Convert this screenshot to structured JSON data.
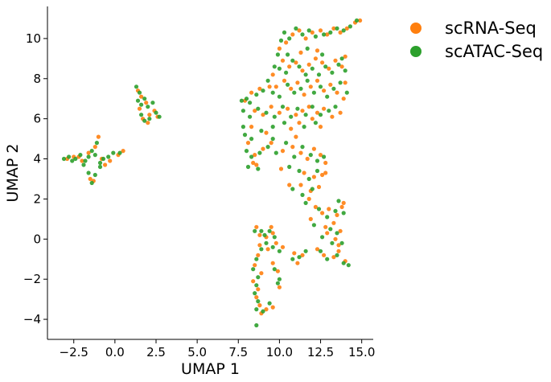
{
  "chart_data": {
    "type": "scatter",
    "title": "",
    "xlabel": "UMAP 1",
    "ylabel": "UMAP 2",
    "xlim": [
      -4.1,
      15.7
    ],
    "ylim": [
      -5.0,
      11.6
    ],
    "x_ticks": [
      -2.5,
      0.0,
      2.5,
      5.0,
      7.5,
      10.0,
      12.5,
      15.0
    ],
    "x_tick_labels": [
      "−2.5",
      "0.0",
      "2.5",
      "5.0",
      "7.5",
      "10.0",
      "12.5",
      "15.0"
    ],
    "y_ticks": [
      -4,
      -2,
      0,
      2,
      4,
      6,
      8,
      10
    ],
    "y_tick_labels": [
      "−4",
      "−2",
      "0",
      "2",
      "4",
      "6",
      "8",
      "10"
    ],
    "grid": false,
    "legend_position": "outside-top-right",
    "series": [
      {
        "name": "scRNA-Seq",
        "color": "#ff7f0e",
        "points": [
          [
            -2.9,
            4.0
          ],
          [
            -2.5,
            4.1
          ],
          [
            -2.0,
            3.9
          ],
          [
            -1.6,
            4.3
          ],
          [
            -1.2,
            4.6
          ],
          [
            -1.0,
            5.1
          ],
          [
            -0.8,
            4.0
          ],
          [
            -0.6,
            3.7
          ],
          [
            -0.3,
            3.9
          ],
          [
            0.2,
            4.2
          ],
          [
            0.5,
            4.4
          ],
          [
            -1.5,
            3.0
          ],
          [
            -1.3,
            2.9
          ],
          [
            -2.2,
            4.1
          ],
          [
            1.4,
            7.4
          ],
          [
            1.6,
            7.1
          ],
          [
            1.9,
            6.8
          ],
          [
            2.1,
            6.2
          ],
          [
            2.4,
            6.4
          ],
          [
            2.6,
            6.1
          ],
          [
            1.7,
            6.0
          ],
          [
            2.0,
            5.8
          ],
          [
            1.5,
            6.5
          ],
          [
            7.9,
            6.9
          ],
          [
            8.3,
            7.3
          ],
          [
            8.8,
            7.5
          ],
          [
            9.4,
            7.6
          ],
          [
            9.6,
            8.2
          ],
          [
            10.0,
            9.5
          ],
          [
            10.4,
            9.8
          ],
          [
            10.8,
            10.2
          ],
          [
            11.2,
            10.4
          ],
          [
            11.6,
            10.0
          ],
          [
            12.0,
            10.3
          ],
          [
            12.5,
            10.4
          ],
          [
            12.9,
            10.2
          ],
          [
            13.3,
            10.5
          ],
          [
            13.7,
            10.3
          ],
          [
            14.1,
            10.5
          ],
          [
            14.6,
            10.8
          ],
          [
            14.9,
            10.9
          ],
          [
            10.2,
            8.9
          ],
          [
            10.6,
            8.6
          ],
          [
            11.0,
            8.8
          ],
          [
            11.4,
            8.4
          ],
          [
            11.8,
            8.7
          ],
          [
            12.2,
            9.0
          ],
          [
            12.6,
            8.8
          ],
          [
            13.0,
            8.5
          ],
          [
            13.4,
            8.9
          ],
          [
            13.8,
            8.6
          ],
          [
            14.0,
            9.1
          ],
          [
            12.3,
            9.4
          ],
          [
            11.3,
            9.3
          ],
          [
            9.8,
            7.6
          ],
          [
            10.3,
            7.9
          ],
          [
            10.7,
            7.5
          ],
          [
            11.1,
            7.8
          ],
          [
            11.5,
            7.2
          ],
          [
            11.9,
            7.6
          ],
          [
            12.3,
            7.9
          ],
          [
            12.7,
            7.4
          ],
          [
            13.1,
            7.7
          ],
          [
            13.5,
            7.3
          ],
          [
            13.9,
            7.0
          ],
          [
            14.0,
            7.8
          ],
          [
            8.5,
            6.4
          ],
          [
            9.0,
            6.2
          ],
          [
            9.5,
            6.6
          ],
          [
            10.0,
            6.3
          ],
          [
            10.5,
            6.5
          ],
          [
            11.0,
            6.2
          ],
          [
            11.4,
            6.4
          ],
          [
            11.8,
            6.6
          ],
          [
            12.3,
            6.3
          ],
          [
            12.7,
            6.5
          ],
          [
            13.2,
            6.1
          ],
          [
            13.7,
            6.3
          ],
          [
            12.0,
            6.0
          ],
          [
            11.2,
            5.8
          ],
          [
            12.5,
            5.6
          ],
          [
            10.7,
            5.5
          ],
          [
            9.2,
            5.3
          ],
          [
            8.3,
            5.6
          ],
          [
            8.1,
            4.8
          ],
          [
            8.5,
            4.2
          ],
          [
            9.0,
            4.5
          ],
          [
            9.5,
            4.8
          ],
          [
            10.2,
            4.4
          ],
          [
            10.8,
            4.6
          ],
          [
            11.3,
            4.3
          ],
          [
            11.7,
            4.0
          ],
          [
            12.1,
            4.5
          ],
          [
            12.5,
            4.2
          ],
          [
            12.8,
            3.8
          ],
          [
            11.0,
            5.1
          ],
          [
            8.4,
            3.8
          ],
          [
            8.6,
            3.7
          ],
          [
            10.1,
            3.5
          ],
          [
            11.5,
            3.3
          ],
          [
            12.1,
            3.1
          ],
          [
            12.6,
            3.2
          ],
          [
            12.8,
            3.3
          ],
          [
            11.3,
            2.7
          ],
          [
            11.9,
            2.4
          ],
          [
            12.4,
            2.6
          ],
          [
            10.6,
            2.7
          ],
          [
            11.8,
            2.0
          ],
          [
            12.2,
            1.6
          ],
          [
            12.6,
            1.3
          ],
          [
            13.0,
            1.5
          ],
          [
            13.5,
            1.2
          ],
          [
            13.8,
            1.6
          ],
          [
            13.9,
            1.8
          ],
          [
            13.3,
            0.8
          ],
          [
            13.7,
            0.4
          ],
          [
            11.9,
            1.0
          ],
          [
            12.8,
            0.6
          ],
          [
            12.9,
            0.3
          ],
          [
            13.4,
            0.0
          ],
          [
            13.6,
            -0.3
          ],
          [
            12.3,
            -0.5
          ],
          [
            12.7,
            -0.8
          ],
          [
            13.3,
            -0.9
          ],
          [
            13.6,
            -0.6
          ],
          [
            14.0,
            -1.1
          ],
          [
            11.4,
            -0.8
          ],
          [
            11.1,
            -1.2
          ],
          [
            10.9,
            -0.7
          ],
          [
            8.6,
            0.6
          ],
          [
            8.8,
            0.2
          ],
          [
            9.2,
            0.1
          ],
          [
            9.5,
            0.6
          ],
          [
            9.6,
            0.3
          ],
          [
            8.8,
            -0.3
          ],
          [
            9.3,
            -0.5
          ],
          [
            9.8,
            -0.2
          ],
          [
            10.2,
            -0.4
          ],
          [
            8.7,
            -0.8
          ],
          [
            8.5,
            -1.3
          ],
          [
            8.9,
            -1.7
          ],
          [
            8.4,
            -2.1
          ],
          [
            8.7,
            -2.5
          ],
          [
            8.6,
            -2.9
          ],
          [
            8.8,
            -3.3
          ],
          [
            8.9,
            -3.7
          ],
          [
            9.2,
            -3.5
          ],
          [
            9.6,
            -3.4
          ],
          [
            10.0,
            -2.4
          ],
          [
            9.9,
            -1.6
          ],
          [
            9.6,
            -1.2
          ]
        ]
      },
      {
        "name": "scATAC-Seq",
        "color": "#2ca02c",
        "points": [
          [
            -3.1,
            4.0
          ],
          [
            -2.8,
            4.1
          ],
          [
            -2.4,
            4.0
          ],
          [
            -2.1,
            4.2
          ],
          [
            -1.8,
            3.9
          ],
          [
            -1.6,
            4.1
          ],
          [
            -1.4,
            4.4
          ],
          [
            -1.2,
            4.2
          ],
          [
            -1.1,
            4.8
          ],
          [
            -0.9,
            3.8
          ],
          [
            -0.7,
            4.0
          ],
          [
            -0.4,
            4.1
          ],
          [
            -0.1,
            4.3
          ],
          [
            0.3,
            4.3
          ],
          [
            -1.6,
            3.3
          ],
          [
            -1.4,
            2.8
          ],
          [
            -1.2,
            3.2
          ],
          [
            -0.9,
            3.6
          ],
          [
            -2.6,
            3.9
          ],
          [
            -1.9,
            3.7
          ],
          [
            1.3,
            7.6
          ],
          [
            1.5,
            7.3
          ],
          [
            1.8,
            7.0
          ],
          [
            2.0,
            6.6
          ],
          [
            2.3,
            6.8
          ],
          [
            2.5,
            6.3
          ],
          [
            2.7,
            6.1
          ],
          [
            1.6,
            6.2
          ],
          [
            1.8,
            5.9
          ],
          [
            2.1,
            6.0
          ],
          [
            1.4,
            6.9
          ],
          [
            1.6,
            6.7
          ],
          [
            7.7,
            6.9
          ],
          [
            8.0,
            7.0
          ],
          [
            8.2,
            6.8
          ],
          [
            8.6,
            7.2
          ],
          [
            9.0,
            7.4
          ],
          [
            9.3,
            7.9
          ],
          [
            9.7,
            8.6
          ],
          [
            9.9,
            9.2
          ],
          [
            10.1,
            9.9
          ],
          [
            10.3,
            10.3
          ],
          [
            10.6,
            10.0
          ],
          [
            11.0,
            10.5
          ],
          [
            11.4,
            10.2
          ],
          [
            11.8,
            10.4
          ],
          [
            12.2,
            10.1
          ],
          [
            12.7,
            10.2
          ],
          [
            13.1,
            10.3
          ],
          [
            13.5,
            10.5
          ],
          [
            13.9,
            10.4
          ],
          [
            14.3,
            10.6
          ],
          [
            14.7,
            10.9
          ],
          [
            10.0,
            8.5
          ],
          [
            10.4,
            8.3
          ],
          [
            10.8,
            8.9
          ],
          [
            11.2,
            8.6
          ],
          [
            11.6,
            8.2
          ],
          [
            12.0,
            8.5
          ],
          [
            12.4,
            8.2
          ],
          [
            12.8,
            8.6
          ],
          [
            13.2,
            8.3
          ],
          [
            13.6,
            8.7
          ],
          [
            14.0,
            8.4
          ],
          [
            13.8,
            9.0
          ],
          [
            12.6,
            9.2
          ],
          [
            11.7,
            9.5
          ],
          [
            10.5,
            9.2
          ],
          [
            9.6,
            7.3
          ],
          [
            10.0,
            7.1
          ],
          [
            10.5,
            7.7
          ],
          [
            10.9,
            7.3
          ],
          [
            11.3,
            7.5
          ],
          [
            11.7,
            7.9
          ],
          [
            12.1,
            7.3
          ],
          [
            12.5,
            7.6
          ],
          [
            12.9,
            7.1
          ],
          [
            13.3,
            7.5
          ],
          [
            13.7,
            7.8
          ],
          [
            14.1,
            7.3
          ],
          [
            7.8,
            6.4
          ],
          [
            8.2,
            6.1
          ],
          [
            8.7,
            6.5
          ],
          [
            9.2,
            6.3
          ],
          [
            9.7,
            6.1
          ],
          [
            10.2,
            6.6
          ],
          [
            10.7,
            6.1
          ],
          [
            11.1,
            6.5
          ],
          [
            11.6,
            6.2
          ],
          [
            12.0,
            6.6
          ],
          [
            12.5,
            6.2
          ],
          [
            13.0,
            6.4
          ],
          [
            13.4,
            6.6
          ],
          [
            12.2,
            5.8
          ],
          [
            11.5,
            5.6
          ],
          [
            10.3,
            5.8
          ],
          [
            9.6,
            5.6
          ],
          [
            8.9,
            5.4
          ],
          [
            7.8,
            5.6
          ],
          [
            7.9,
            5.2
          ],
          [
            8.3,
            5.0
          ],
          [
            8.0,
            4.4
          ],
          [
            8.3,
            4.1
          ],
          [
            8.8,
            4.3
          ],
          [
            9.3,
            4.6
          ],
          [
            9.8,
            4.3
          ],
          [
            10.4,
            4.8
          ],
          [
            10.9,
            4.1
          ],
          [
            11.4,
            4.6
          ],
          [
            11.9,
            4.2
          ],
          [
            12.3,
            3.9
          ],
          [
            12.7,
            4.1
          ],
          [
            9.6,
            5.0
          ],
          [
            8.1,
            3.6
          ],
          [
            8.7,
            3.5
          ],
          [
            10.6,
            3.6
          ],
          [
            11.2,
            3.4
          ],
          [
            11.8,
            3.0
          ],
          [
            12.3,
            3.4
          ],
          [
            10.8,
            2.5
          ],
          [
            11.4,
            2.2
          ],
          [
            12.0,
            2.5
          ],
          [
            11.6,
            1.8
          ],
          [
            12.4,
            1.5
          ],
          [
            12.9,
            1.1
          ],
          [
            13.4,
            1.4
          ],
          [
            13.9,
            1.3
          ],
          [
            13.6,
            1.9
          ],
          [
            13.1,
            0.5
          ],
          [
            13.5,
            0.3
          ],
          [
            12.1,
            0.7
          ],
          [
            12.6,
            0.1
          ],
          [
            13.2,
            -0.2
          ],
          [
            13.8,
            -0.2
          ],
          [
            12.5,
            -0.6
          ],
          [
            12.9,
            -1.0
          ],
          [
            13.5,
            -0.8
          ],
          [
            13.9,
            -1.2
          ],
          [
            14.2,
            -1.3
          ],
          [
            11.6,
            -0.6
          ],
          [
            11.2,
            -0.9
          ],
          [
            10.8,
            -1.0
          ],
          [
            8.5,
            0.4
          ],
          [
            8.9,
            0.4
          ],
          [
            9.1,
            0.2
          ],
          [
            9.4,
            0.4
          ],
          [
            9.7,
            0.1
          ],
          [
            8.9,
            -0.5
          ],
          [
            9.2,
            -0.2
          ],
          [
            9.6,
            -0.4
          ],
          [
            10.0,
            -0.6
          ],
          [
            8.6,
            -1.0
          ],
          [
            8.4,
            -1.5
          ],
          [
            8.7,
            -1.9
          ],
          [
            8.6,
            -2.3
          ],
          [
            8.5,
            -2.7
          ],
          [
            8.7,
            -3.1
          ],
          [
            8.6,
            -3.5
          ],
          [
            9.0,
            -3.6
          ],
          [
            9.4,
            -3.2
          ],
          [
            8.6,
            -4.3
          ],
          [
            9.9,
            -2.2
          ],
          [
            10.0,
            -2.0
          ],
          [
            9.7,
            -1.5
          ]
        ]
      }
    ]
  }
}
